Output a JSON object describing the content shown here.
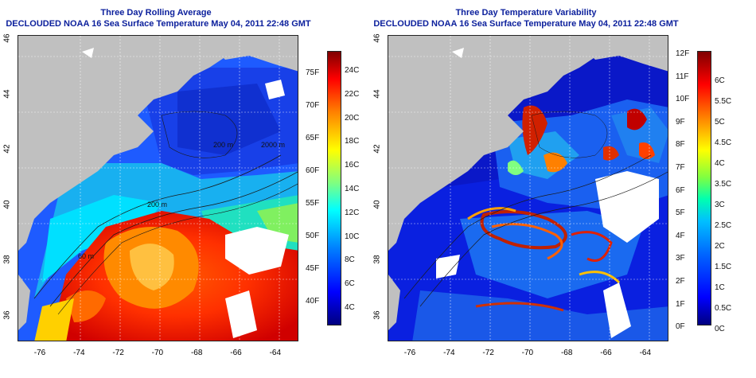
{
  "left_panel": {
    "title_line1": "Three Day Rolling Average",
    "title_line2": "DECLOUDED NOAA 16 Sea Surface Temperature May 04, 2011 22:48 GMT",
    "colorbar_left_labels": [
      "75F",
      "70F",
      "65F",
      "60F",
      "55F",
      "50F",
      "45F",
      "40F"
    ],
    "colorbar_right_labels": [
      "24C",
      "22C",
      "20C",
      "18C",
      "16C",
      "14C",
      "12C",
      "10C",
      "8C",
      "6C",
      "4C"
    ],
    "contour_labels": [
      "2000 m",
      "200 m",
      "200 m",
      "60 m"
    ]
  },
  "right_panel": {
    "title_line1": "Three Day Temperature Variability",
    "title_line2": "DECLOUDED NOAA 16 Sea Surface Temperature May 04, 2011 22:48 GMT",
    "colorbar_left_labels": [
      "12F",
      "11F",
      "10F",
      "9F",
      "8F",
      "7F",
      "6F",
      "5F",
      "4F",
      "3F",
      "2F",
      "1F",
      "0F"
    ],
    "colorbar_right_labels": [
      "6C",
      "5.5C",
      "5C",
      "4.5C",
      "4C",
      "3.5C",
      "3C",
      "2.5C",
      "2C",
      "1.5C",
      "1C",
      "0.5C",
      "0C"
    ]
  },
  "longitude_labels": [
    "-76",
    "-74",
    "-72",
    "-70",
    "-68",
    "-66",
    "-64"
  ],
  "latitude_labels": [
    "46",
    "44",
    "42",
    "40",
    "38",
    "36"
  ],
  "colors": {
    "title": "#0b1f9c",
    "land": "#c0c0c0",
    "sst_scale": [
      "#00007f",
      "#0000ff",
      "#0080ff",
      "#00ffff",
      "#80ff80",
      "#ffff00",
      "#ff8000",
      "#ff0000",
      "#7f0000"
    ]
  }
}
